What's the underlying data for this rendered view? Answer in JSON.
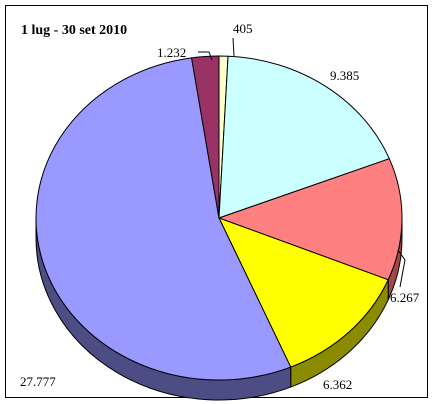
{
  "chart_data": {
    "type": "pie",
    "title": "1 lug - 30 set 2010",
    "slices": [
      {
        "label": "405",
        "value": 405,
        "color": "#ffffcc",
        "side": "#c8c89a"
      },
      {
        "label": "9.385",
        "value": 9385,
        "color": "#ccffff",
        "side": "#8fb3b3"
      },
      {
        "label": "6.267",
        "value": 6267,
        "color": "#ff8080",
        "side": "#a04848"
      },
      {
        "label": "6.362",
        "value": 6362,
        "color": "#ffff00",
        "side": "#8b8b00"
      },
      {
        "label": "27.777",
        "value": 27777,
        "color": "#9999ff",
        "side": "#4d4d86"
      },
      {
        "label": "1.232",
        "value": 1232,
        "color": "#993366",
        "side": "#5a1d3b"
      }
    ],
    "start_direction": "top",
    "rotation": "clockwise"
  }
}
